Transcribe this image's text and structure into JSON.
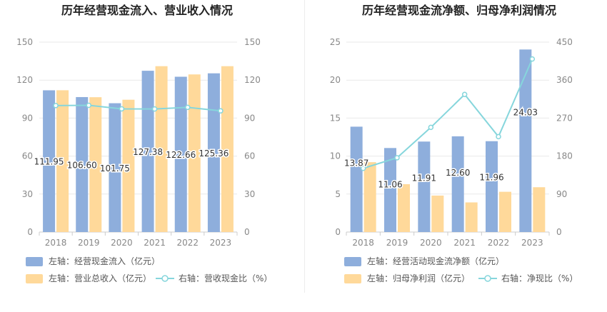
{
  "charts": [
    {
      "title": "历年经营现金流入、营业收入情况",
      "legend": [
        {
          "label": "左轴：经营现金流入（亿元）"
        },
        {
          "label": "左轴：营业总收入（亿元）"
        },
        {
          "label": "右轴：营收现金比（%）"
        }
      ]
    },
    {
      "title": "历年经营现金流净额、归母净利润情况",
      "legend": [
        {
          "label": "左轴：经营活动现金流净额（亿元）"
        },
        {
          "label": "左轴：归母净利润（亿元）"
        },
        {
          "label": "右轴：净现比（%）"
        }
      ]
    }
  ],
  "colors": {
    "bar1": "#8eaedc",
    "bar2": "#ffd99a",
    "line": "#86d6dc",
    "grid": "#e9e9e9",
    "axis": "#cccccc"
  },
  "chart_data": [
    {
      "type": "bar",
      "title": "历年经营现金流入、营业收入情况",
      "categories": [
        "2018",
        "2019",
        "2020",
        "2021",
        "2022",
        "2023"
      ],
      "ylim": [
        0,
        150
      ],
      "y2lim": [
        0,
        150
      ],
      "yticks": [
        0,
        30,
        60,
        90,
        120,
        150
      ],
      "y2ticks": [
        0,
        30,
        60,
        90,
        120,
        150
      ],
      "series": [
        {
          "name": "经营现金流入",
          "axis": "left",
          "kind": "bar",
          "values": [
            111.95,
            106.6,
            101.75,
            127.38,
            122.66,
            125.36
          ],
          "labels": [
            "111.95",
            "106.60",
            "101.75",
            "127.38",
            "122.66",
            "125.36"
          ]
        },
        {
          "name": "营业总收入",
          "axis": "left",
          "kind": "bar",
          "values": [
            112.0,
            106.5,
            104.5,
            131.0,
            124.5,
            131.0
          ]
        },
        {
          "name": "营收现金比",
          "axis": "right",
          "kind": "line",
          "values": [
            99.9,
            100.1,
            97.3,
            97.2,
            98.5,
            95.7
          ]
        }
      ],
      "legend_position": "bottom"
    },
    {
      "type": "bar",
      "title": "历年经营现金流净额、归母净利润情况",
      "categories": [
        "2018",
        "2019",
        "2020",
        "2021",
        "2022",
        "2023"
      ],
      "ylim": [
        0,
        25
      ],
      "y2lim": [
        0,
        450
      ],
      "yticks": [
        0,
        5,
        10,
        15,
        20,
        25
      ],
      "y2ticks": [
        0,
        90,
        180,
        270,
        360,
        450
      ],
      "series": [
        {
          "name": "经营活动现金流净额",
          "axis": "left",
          "kind": "bar",
          "values": [
            13.87,
            11.06,
            11.91,
            12.6,
            11.96,
            24.03
          ],
          "labels": [
            "13.87",
            "11.06",
            "11.91",
            "12.60",
            "11.96",
            "24.03"
          ]
        },
        {
          "name": "归母净利润",
          "axis": "left",
          "kind": "bar",
          "values": [
            9.2,
            6.3,
            4.8,
            3.9,
            5.3,
            5.9
          ]
        },
        {
          "name": "净现比",
          "axis": "right",
          "kind": "line",
          "values": [
            151,
            176,
            248,
            326,
            226,
            410
          ]
        }
      ],
      "legend_position": "bottom"
    }
  ]
}
